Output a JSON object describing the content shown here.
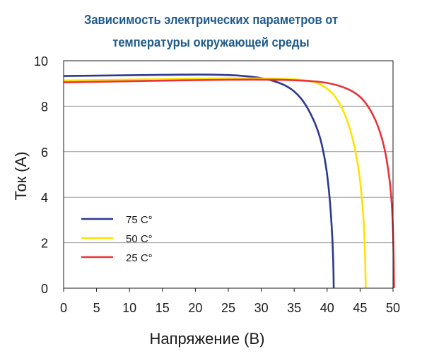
{
  "chart_data": {
    "type": "line",
    "title_line1": "Зависимость электрических параметров от",
    "title_line2": "температуры окружающей среды",
    "xlabel": "Напряжение (В)",
    "ylabel": "Ток (А)",
    "xlim": [
      0,
      50
    ],
    "ylim": [
      0,
      10
    ],
    "x_ticks": [
      "0",
      "5",
      "10",
      "15",
      "20",
      "25",
      "30",
      "35",
      "40",
      "45",
      "50"
    ],
    "y_ticks": [
      "0",
      "2",
      "4",
      "6",
      "8",
      "10"
    ],
    "grid": "horizontal",
    "legend_position": "bottom-left",
    "series": [
      {
        "name": "75 C°",
        "color": "#2b3990",
        "points": [
          [
            0,
            9.33
          ],
          [
            10,
            9.36
          ],
          [
            20,
            9.4
          ],
          [
            25,
            9.38
          ],
          [
            28,
            9.32
          ],
          [
            31,
            9.2
          ],
          [
            34,
            8.9
          ],
          [
            36,
            8.4
          ],
          [
            37.5,
            7.7
          ],
          [
            38.8,
            6.8
          ],
          [
            39.6,
            5.8
          ],
          [
            40.1,
            4.8
          ],
          [
            40.5,
            3.6
          ],
          [
            40.8,
            2.2
          ],
          [
            40.95,
            1.0
          ],
          [
            41.0,
            0.0
          ]
        ]
      },
      {
        "name": "50 C°",
        "color": "#fce300",
        "points": [
          [
            0,
            9.13
          ],
          [
            10,
            9.17
          ],
          [
            20,
            9.22
          ],
          [
            30,
            9.23
          ],
          [
            35,
            9.2
          ],
          [
            38,
            9.1
          ],
          [
            40,
            8.8
          ],
          [
            41.5,
            8.35
          ],
          [
            42.8,
            7.6
          ],
          [
            43.8,
            6.7
          ],
          [
            44.6,
            5.6
          ],
          [
            45.1,
            4.5
          ],
          [
            45.5,
            3.2
          ],
          [
            45.7,
            2.0
          ],
          [
            45.8,
            1.0
          ],
          [
            45.85,
            0.0
          ]
        ]
      },
      {
        "name": "25 C°",
        "color": "#e8333a",
        "points": [
          [
            0,
            9.05
          ],
          [
            10,
            9.1
          ],
          [
            20,
            9.15
          ],
          [
            30,
            9.18
          ],
          [
            36,
            9.14
          ],
          [
            40,
            9.05
          ],
          [
            43,
            8.8
          ],
          [
            45,
            8.45
          ],
          [
            46.5,
            7.9
          ],
          [
            47.8,
            7.1
          ],
          [
            48.7,
            6.2
          ],
          [
            49.3,
            5.2
          ],
          [
            49.7,
            4.2
          ],
          [
            49.95,
            3.0
          ],
          [
            50.1,
            1.5
          ],
          [
            50.15,
            0.0
          ]
        ]
      }
    ]
  }
}
